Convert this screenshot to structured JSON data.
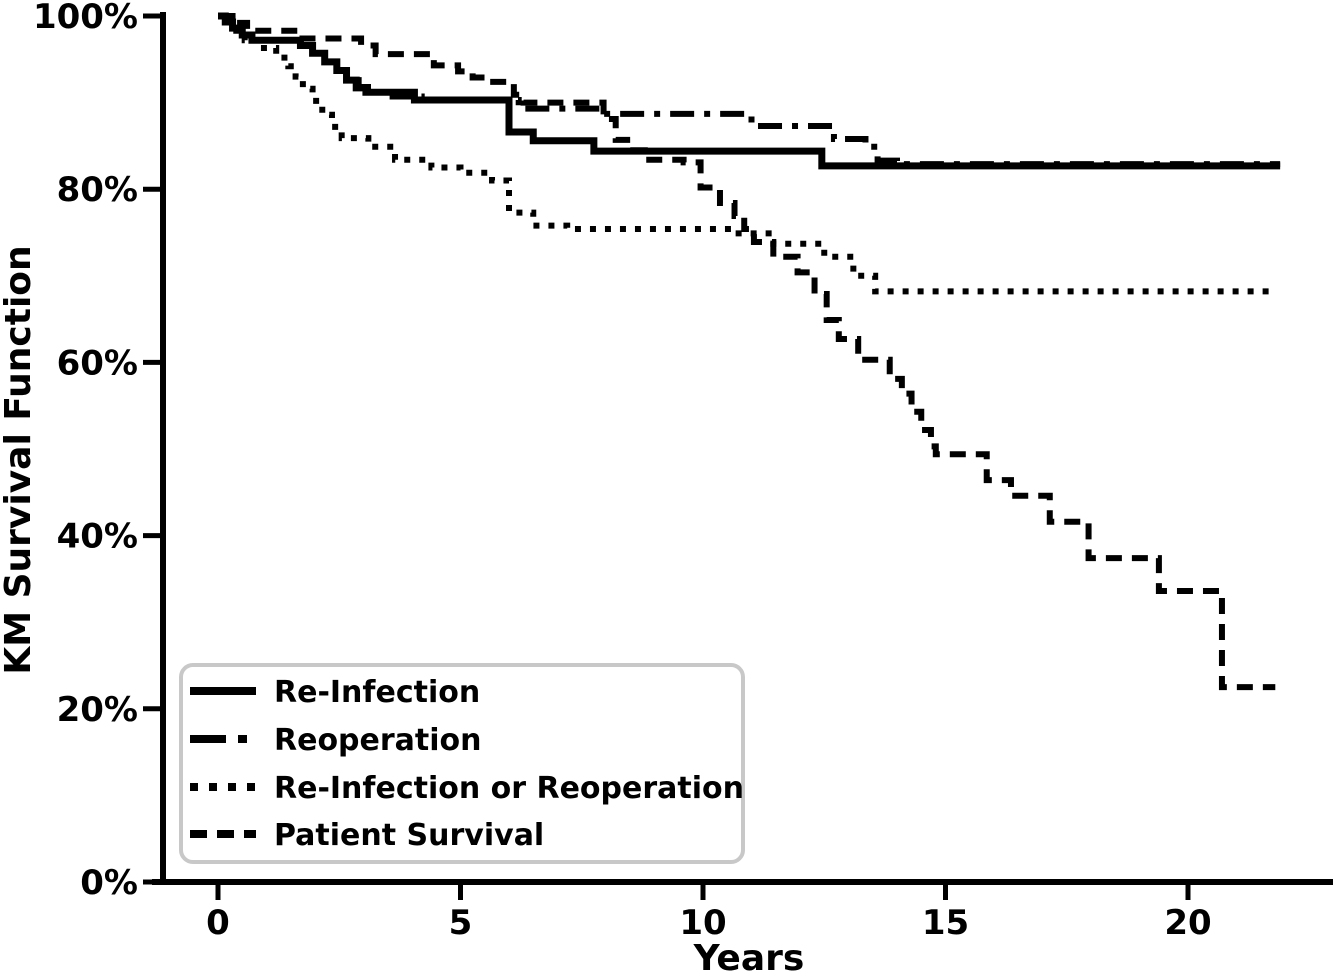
{
  "figure": {
    "background": "#ffffff",
    "line_color": "#000000",
    "legend_border_color": "#c8c8c8",
    "legend_background": "#ffffff"
  },
  "chart_data": {
    "type": "line",
    "subtype": "kaplan-meier-step-function",
    "title": "",
    "xlabel": "Years",
    "ylabel": "KM Survival Function",
    "xlim": [
      0,
      22.5
    ],
    "ylim": [
      0,
      100
    ],
    "grid": false,
    "x_ticks": {
      "values": [
        0,
        5,
        10,
        15,
        20
      ],
      "labels": [
        "0",
        "5",
        "10",
        "15",
        "20"
      ]
    },
    "y_ticks": {
      "values": [
        0,
        20,
        40,
        60,
        80,
        100
      ],
      "labels": [
        "0%",
        "20%",
        "40%",
        "60%",
        "80%",
        "100%"
      ]
    },
    "legend": {
      "position": "lower-left",
      "items": [
        "Re-Infection",
        "Reoperation",
        "Re-Infection or Reoperation",
        "Patient Survival"
      ]
    },
    "series": [
      {
        "name": "Re-Infection",
        "linestyle": "solid",
        "color": "#000000",
        "final_value_pct": 82.7,
        "points": [
          [
            0,
            100
          ],
          [
            0.15,
            99.3
          ],
          [
            0.3,
            98.6
          ],
          [
            0.5,
            97.8
          ],
          [
            0.7,
            97.2
          ],
          [
            1.7,
            96.6
          ],
          [
            1.95,
            95.7
          ],
          [
            2.2,
            94.7
          ],
          [
            2.45,
            93.7
          ],
          [
            2.65,
            92.6
          ],
          [
            2.85,
            91.7
          ],
          [
            3.05,
            91.2
          ],
          [
            4.05,
            90.3
          ],
          [
            6.0,
            86.6
          ],
          [
            6.5,
            85.6
          ],
          [
            7.75,
            84.4
          ],
          [
            12.45,
            82.7
          ],
          [
            21.9,
            82.7
          ]
        ]
      },
      {
        "name": "Reoperation",
        "linestyle": "dashdot",
        "color": "#000000",
        "final_value_pct": 82.9,
        "points": [
          [
            0,
            100
          ],
          [
            0.15,
            99.3
          ],
          [
            0.3,
            98.6
          ],
          [
            0.5,
            97.8
          ],
          [
            0.7,
            97.2
          ],
          [
            1.7,
            96.6
          ],
          [
            1.95,
            95.7
          ],
          [
            2.2,
            94.7
          ],
          [
            2.45,
            93.7
          ],
          [
            2.65,
            92.6
          ],
          [
            2.9,
            91.8
          ],
          [
            3.2,
            91.2
          ],
          [
            3.6,
            90.7
          ],
          [
            4.2,
            90.3
          ],
          [
            6.2,
            89.3
          ],
          [
            7.95,
            88.7
          ],
          [
            11.0,
            87.3
          ],
          [
            12.7,
            85.8
          ],
          [
            13.35,
            84.9
          ],
          [
            13.6,
            83.3
          ],
          [
            14.0,
            82.9
          ],
          [
            21.9,
            82.9
          ]
        ]
      },
      {
        "name": "Re-Infection or Reoperation",
        "linestyle": "dotted",
        "color": "#000000",
        "final_value_pct": 68.2,
        "points": [
          [
            0,
            100
          ],
          [
            0.3,
            98.3
          ],
          [
            0.55,
            97.2
          ],
          [
            0.8,
            96.3
          ],
          [
            1.2,
            95.2
          ],
          [
            1.45,
            94.2
          ],
          [
            1.6,
            93.0
          ],
          [
            1.75,
            91.6
          ],
          [
            1.95,
            90.2
          ],
          [
            2.15,
            88.6
          ],
          [
            2.35,
            87.2
          ],
          [
            2.55,
            85.9
          ],
          [
            3.1,
            84.9
          ],
          [
            3.65,
            83.4
          ],
          [
            4.4,
            82.5
          ],
          [
            5.0,
            81.9
          ],
          [
            5.65,
            81.0
          ],
          [
            6.0,
            77.3
          ],
          [
            6.5,
            75.8
          ],
          [
            7.2,
            75.4
          ],
          [
            10.6,
            74.9
          ],
          [
            11.45,
            73.7
          ],
          [
            12.5,
            72.2
          ],
          [
            13.1,
            70.0
          ],
          [
            13.55,
            68.2
          ],
          [
            21.8,
            68.2
          ]
        ]
      },
      {
        "name": "Patient Survival",
        "linestyle": "dashed",
        "color": "#000000",
        "final_value_pct": 22.5,
        "points": [
          [
            0,
            100
          ],
          [
            0.3,
            99.2
          ],
          [
            0.6,
            98.3
          ],
          [
            1.65,
            97.4
          ],
          [
            2.95,
            96.6
          ],
          [
            3.25,
            95.6
          ],
          [
            4.45,
            94.3
          ],
          [
            4.95,
            93.6
          ],
          [
            5.25,
            92.9
          ],
          [
            5.6,
            92.4
          ],
          [
            6.1,
            90.9
          ],
          [
            6.3,
            90.0
          ],
          [
            7.95,
            88.1
          ],
          [
            8.2,
            85.7
          ],
          [
            8.5,
            84.5
          ],
          [
            8.8,
            83.4
          ],
          [
            9.6,
            83.1
          ],
          [
            9.95,
            80.2
          ],
          [
            10.35,
            78.4
          ],
          [
            10.65,
            76.9
          ],
          [
            10.85,
            75.4
          ],
          [
            11.05,
            73.9
          ],
          [
            11.45,
            72.2
          ],
          [
            11.95,
            70.4
          ],
          [
            12.3,
            67.9
          ],
          [
            12.55,
            64.9
          ],
          [
            12.8,
            62.7
          ],
          [
            13.2,
            60.3
          ],
          [
            13.85,
            58.1
          ],
          [
            14.1,
            56.4
          ],
          [
            14.3,
            54.3
          ],
          [
            14.5,
            52.2
          ],
          [
            14.7,
            50.3
          ],
          [
            14.8,
            49.4
          ],
          [
            15.85,
            46.4
          ],
          [
            16.35,
            44.6
          ],
          [
            17.15,
            41.6
          ],
          [
            17.95,
            37.4
          ],
          [
            19.4,
            33.6
          ],
          [
            20.7,
            22.5
          ],
          [
            21.8,
            22.5
          ]
        ]
      }
    ]
  }
}
